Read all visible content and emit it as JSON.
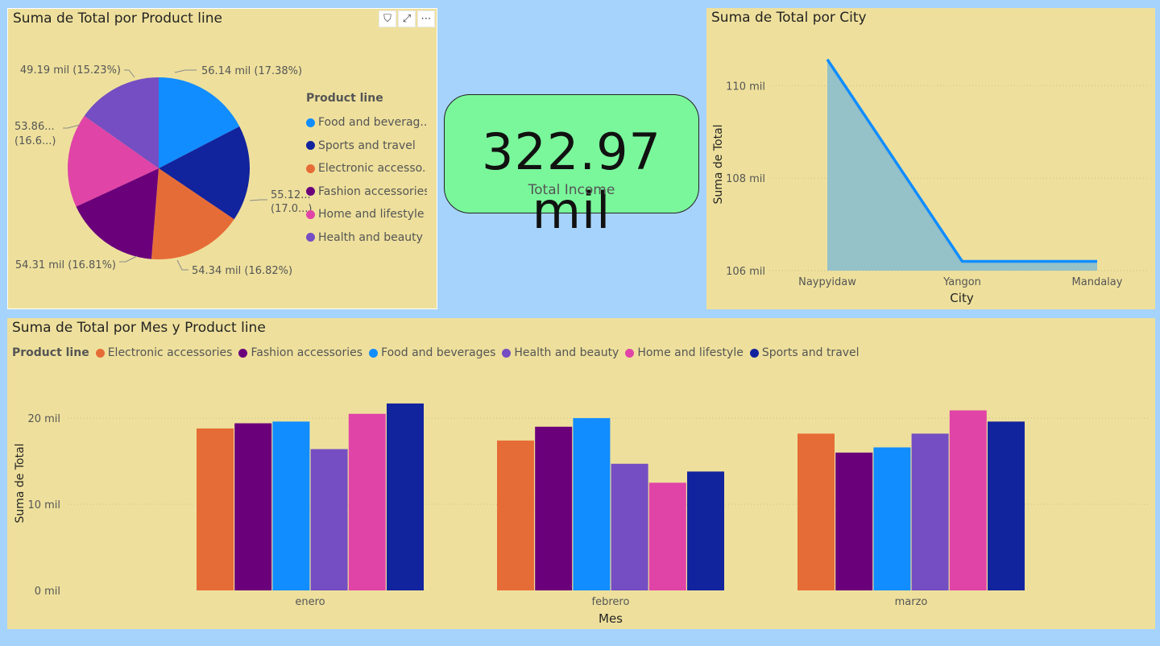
{
  "pie_panel": {
    "title": "Suma de Total por Product line",
    "legend_title": "Product line",
    "legend_labels": [
      "Food and beverag...",
      "Sports and travel",
      "Electronic accesso...",
      "Fashion accessories",
      "Home and lifestyle",
      "Health and beauty"
    ],
    "slice_labels": [
      "56.14 mil (17.38%)",
      "55.12...",
      "(17.0...)",
      "54.34 mil (16.82%)",
      "54.31 mil (16.81%)",
      "53.86...",
      "(16.6...)",
      "49.19 mil (15.23%)"
    ],
    "header_icons": [
      "filter-icon",
      "focus-mode-icon",
      "more-options-icon"
    ],
    "header_glyphs": [
      "⛉",
      "⤢",
      "⋯"
    ]
  },
  "kpi": {
    "value": "322.97 mil",
    "label": "Total Income"
  },
  "area_panel": {
    "title": "Suma de Total por City"
  },
  "bar_panel": {
    "title": "Suma de Total por Mes y Product line",
    "legend_title": "Product line"
  },
  "colors": {
    "Food and beverages": "#118dff",
    "Sports and travel": "#12239e",
    "Electronic accessories": "#e66c37",
    "Fashion accessories": "#6b007b",
    "Home and lifestyle": "#e044a7",
    "Health and beauty": "#744ec2"
  },
  "chart_data": [
    {
      "type": "pie",
      "title": "Suma de Total por Product line",
      "categories": [
        "Food and beverages",
        "Sports and travel",
        "Electronic accessories",
        "Fashion accessories",
        "Home and lifestyle",
        "Health and beauty"
      ],
      "values": [
        56.14,
        55.12,
        54.34,
        54.31,
        53.86,
        49.19
      ],
      "percents": [
        17.38,
        17.07,
        16.82,
        16.81,
        16.68,
        15.23
      ],
      "unit": "mil",
      "legend": "right"
    },
    {
      "type": "area",
      "title": "Suma de Total por City",
      "x": [
        "Naypyidaw",
        "Yangon",
        "Mandalay"
      ],
      "values": [
        110.57,
        106.2,
        106.2
      ],
      "xlabel": "City",
      "ylabel": "Suma de Total",
      "ylim": [
        106,
        110.6
      ],
      "yticks": [
        106,
        108,
        110
      ],
      "ytick_labels": [
        "106 mil",
        "108 mil",
        "110 mil"
      ],
      "grid": true
    },
    {
      "type": "bar",
      "title": "Suma de Total por Mes y Product line",
      "categories": [
        "enero",
        "febrero",
        "marzo"
      ],
      "series": [
        {
          "name": "Electronic accessories",
          "values": [
            18.8,
            17.4,
            18.2
          ]
        },
        {
          "name": "Fashion accessories",
          "values": [
            19.4,
            19.0,
            16.0
          ]
        },
        {
          "name": "Food and beverages",
          "values": [
            19.6,
            20.0,
            16.6
          ]
        },
        {
          "name": "Health and beauty",
          "values": [
            16.4,
            14.7,
            18.2
          ]
        },
        {
          "name": "Home and lifestyle",
          "values": [
            20.5,
            12.5,
            20.9
          ]
        },
        {
          "name": "Sports and travel",
          "values": [
            21.7,
            13.8,
            19.6
          ]
        }
      ],
      "xlabel": "Mes",
      "ylabel": "Suma de Total",
      "ylim": [
        0,
        23
      ],
      "yticks": [
        0,
        10,
        20
      ],
      "ytick_labels": [
        "0 mil",
        "10 mil",
        "20 mil"
      ],
      "legend": "top-left",
      "grid": true
    }
  ]
}
